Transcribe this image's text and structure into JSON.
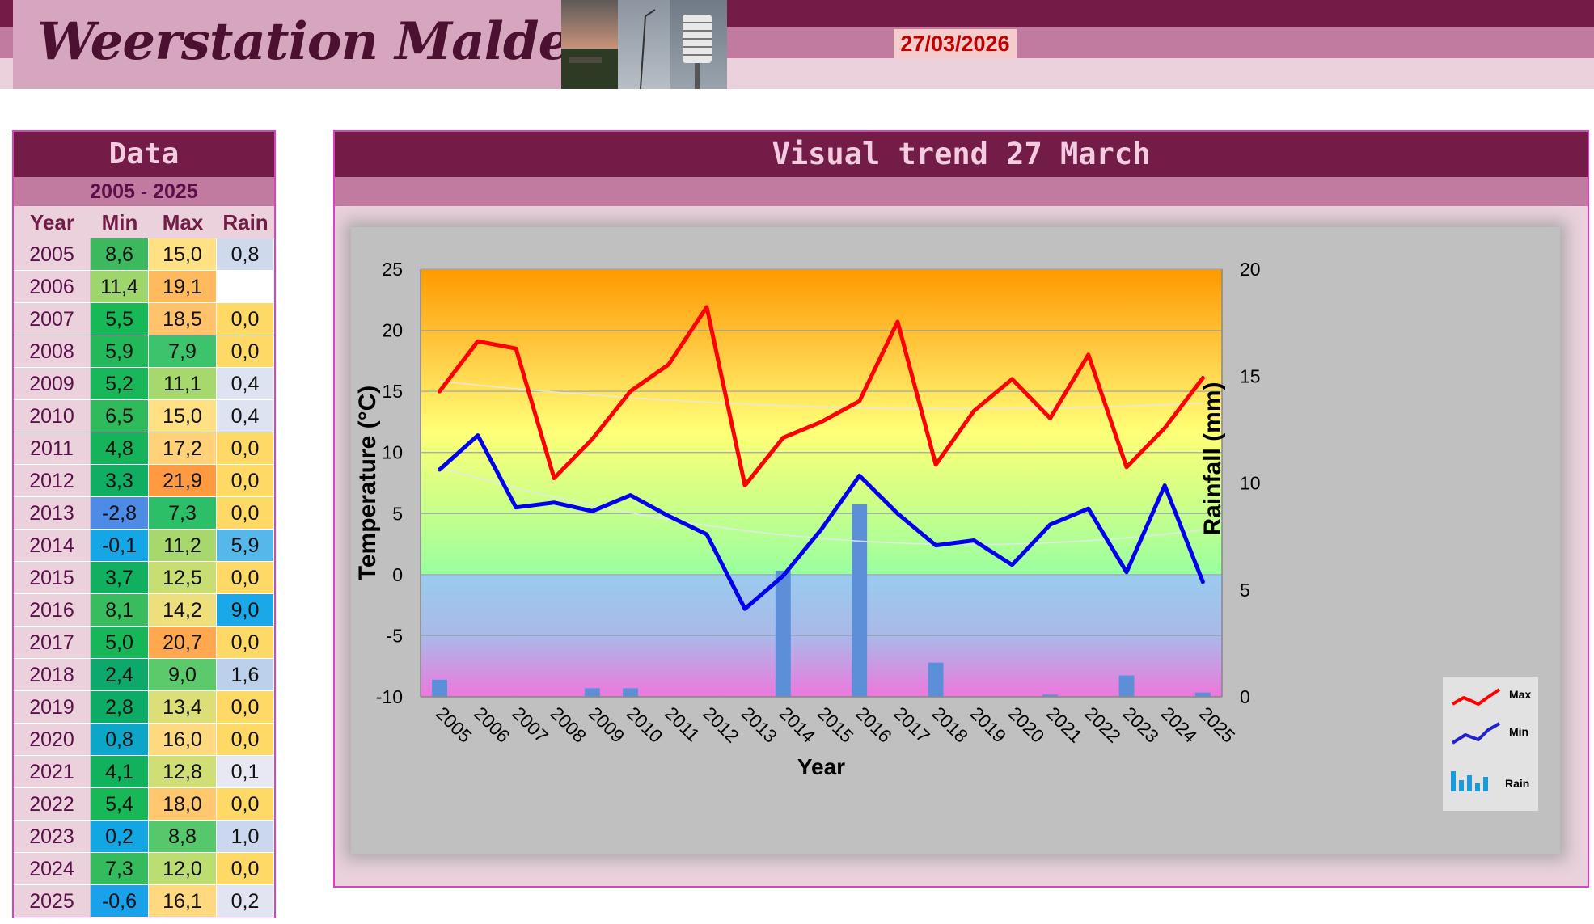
{
  "header": {
    "title": "Weerstation Malderen",
    "date": "27/03/2026",
    "photo_icon": "weather-station-photo"
  },
  "data_panel": {
    "title": "Data",
    "range": "2005 - 2025",
    "columns": [
      "Year",
      "Min",
      "Max",
      "Rain"
    ],
    "rows": [
      {
        "year": "2005",
        "min": "8,6",
        "max": "15,0",
        "rain": "0,8",
        "min_color": "#3cb95f",
        "max_color": "#ffe083",
        "rain_color": "#cfd9ec"
      },
      {
        "year": "2006",
        "min": "11,4",
        "max": "19,1",
        "rain": "",
        "min_color": "#9ed56d",
        "max_color": "#ffba5e",
        "rain_color": "#ffffff"
      },
      {
        "year": "2007",
        "min": "5,5",
        "max": "18,5",
        "rain": "0,0",
        "min_color": "#17b858",
        "max_color": "#ffc46b",
        "rain_color": "#ffd966"
      },
      {
        "year": "2008",
        "min": "5,9",
        "max": "7,9",
        "rain": "0,0",
        "min_color": "#22b95a",
        "max_color": "#3cc36c",
        "rain_color": "#ffd966"
      },
      {
        "year": "2009",
        "min": "5,2",
        "max": "11,1",
        "rain": "0,4",
        "min_color": "#18b759",
        "max_color": "#a6d86d",
        "rain_color": "#dde3f0"
      },
      {
        "year": "2010",
        "min": "6,5",
        "max": "15,0",
        "rain": "0,4",
        "min_color": "#2fbb5c",
        "max_color": "#ffe083",
        "rain_color": "#dde3f0"
      },
      {
        "year": "2011",
        "min": "4,8",
        "max": "17,2",
        "rain": "0,0",
        "min_color": "#15b45a",
        "max_color": "#ffd27a",
        "rain_color": "#ffd966"
      },
      {
        "year": "2012",
        "min": "3,3",
        "max": "21,9",
        "rain": "0,0",
        "min_color": "#0fae62",
        "max_color": "#ff9a40",
        "rain_color": "#ffd966"
      },
      {
        "year": "2013",
        "min": "-2,8",
        "max": "7,3",
        "rain": "0,0",
        "min_color": "#4d8be6",
        "max_color": "#2dbf67",
        "rain_color": "#ffd966"
      },
      {
        "year": "2014",
        "min": "-0,1",
        "max": "11,2",
        "rain": "5,9",
        "min_color": "#14a6e6",
        "max_color": "#a8d86d",
        "rain_color": "#56b7ea"
      },
      {
        "year": "2015",
        "min": "3,7",
        "max": "12,5",
        "rain": "0,0",
        "min_color": "#10b060",
        "max_color": "#c8de73",
        "rain_color": "#ffd966"
      },
      {
        "year": "2016",
        "min": "8,1",
        "max": "14,2",
        "rain": "9,0",
        "min_color": "#38bc5d",
        "max_color": "#ecdf7c",
        "rain_color": "#1aa8e8"
      },
      {
        "year": "2017",
        "min": "5,0",
        "max": "20,7",
        "rain": "0,0",
        "min_color": "#16b659",
        "max_color": "#ffa84f",
        "rain_color": "#ffd966"
      },
      {
        "year": "2018",
        "min": "2,4",
        "max": "9,0",
        "rain": "1,6",
        "min_color": "#0ca96a",
        "max_color": "#5cc96b",
        "rain_color": "#bcd0ec"
      },
      {
        "year": "2019",
        "min": "2,8",
        "max": "13,4",
        "rain": "0,0",
        "min_color": "#0dac66",
        "max_color": "#dcdf78",
        "rain_color": "#ffd966"
      },
      {
        "year": "2020",
        "min": "0,8",
        "max": "16,0",
        "rain": "0,0",
        "min_color": "#0ba6c8",
        "max_color": "#ffd980",
        "rain_color": "#ffd966"
      },
      {
        "year": "2021",
        "min": "4,1",
        "max": "12,8",
        "rain": "0,1",
        "min_color": "#12b15e",
        "max_color": "#cfdf76",
        "rain_color": "#e8e8f2"
      },
      {
        "year": "2022",
        "min": "5,4",
        "max": "18,0",
        "rain": "0,0",
        "min_color": "#18b758",
        "max_color": "#ffc86f",
        "rain_color": "#ffd966"
      },
      {
        "year": "2023",
        "min": "0,2",
        "max": "8,8",
        "rain": "1,0",
        "min_color": "#12a6e2",
        "max_color": "#55c86b",
        "rain_color": "#cad7ee"
      },
      {
        "year": "2024",
        "min": "7,3",
        "max": "12,0",
        "rain": "0,0",
        "min_color": "#33bb5d",
        "max_color": "#bcdd71",
        "rain_color": "#ffd966"
      },
      {
        "year": "2025",
        "min": "-0,6",
        "max": "16,1",
        "rain": "0,2",
        "min_color": "#19a2ea",
        "max_color": "#ffd880",
        "rain_color": "#e3e4f1"
      }
    ]
  },
  "chart_panel": {
    "title": "Visual trend 27 March"
  },
  "chart_data": {
    "type": "line",
    "title": "Visual trend 27 March",
    "xlabel": "Year",
    "ylabel": "Temperature (°C)",
    "y2label": "Rainfall (mm)",
    "ylim": [
      -10,
      25
    ],
    "y2lim": [
      0,
      20
    ],
    "yticks": [
      "25",
      "20",
      "15",
      "10",
      "5",
      "0",
      "-5",
      "-10"
    ],
    "y2ticks": [
      "20",
      "15",
      "10",
      "5",
      "0"
    ],
    "categories": [
      "2005",
      "2006",
      "2007",
      "2008",
      "2009",
      "2010",
      "2011",
      "2012",
      "2013",
      "2014",
      "2015",
      "2016",
      "2017",
      "2018",
      "2019",
      "2020",
      "2021",
      "2022",
      "2023",
      "2024",
      "2025"
    ],
    "series": [
      {
        "name": "Max",
        "type": "line",
        "axis": "left",
        "color": "#ff0000",
        "values": [
          15.0,
          19.1,
          18.5,
          7.9,
          11.1,
          15.0,
          17.2,
          21.9,
          7.3,
          11.2,
          12.5,
          14.2,
          20.7,
          9.0,
          13.4,
          16.0,
          12.8,
          18.0,
          8.8,
          12.0,
          16.1
        ]
      },
      {
        "name": "Min",
        "type": "line",
        "axis": "left",
        "color": "#0000ee",
        "values": [
          8.6,
          11.4,
          5.5,
          5.9,
          5.2,
          6.5,
          4.8,
          3.3,
          -2.8,
          -0.1,
          3.7,
          8.1,
          5.0,
          2.4,
          2.8,
          0.8,
          4.1,
          5.4,
          0.2,
          7.3,
          -0.6
        ]
      },
      {
        "name": "Rain",
        "type": "bar",
        "axis": "right",
        "color": "#5b8fd8",
        "values": [
          0.8,
          0,
          0,
          0,
          0.4,
          0.4,
          0,
          0,
          0,
          5.9,
          0,
          9.0,
          0,
          1.6,
          0,
          0,
          0.1,
          0,
          1.0,
          0,
          0.2
        ]
      }
    ],
    "legend": {
      "position": "bottom-right",
      "items": [
        "Max",
        "Min",
        "Rain"
      ]
    },
    "grid": true,
    "background": "temperature-gradient",
    "trendlines": true
  }
}
